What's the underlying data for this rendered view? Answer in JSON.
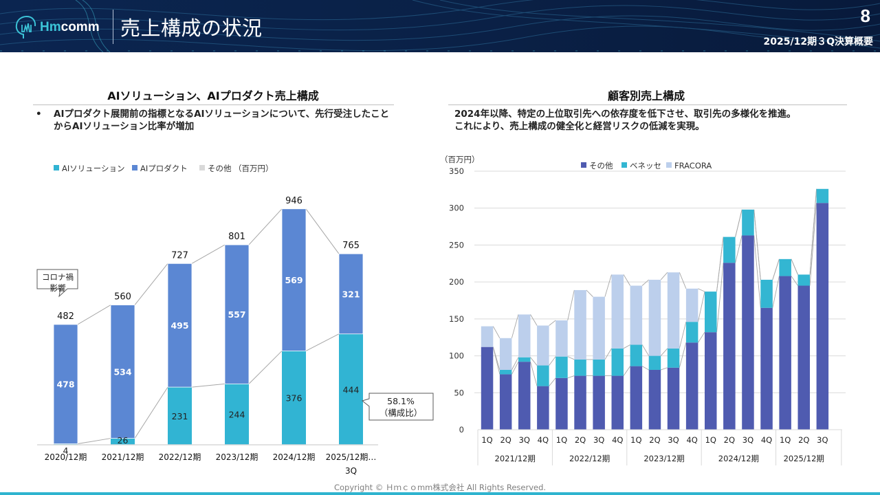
{
  "header": {
    "logo_text_a": "Hm",
    "logo_text_b": "comm",
    "title": "売上構成の状況",
    "page_number": "8",
    "document_title": "2025/12期３Q決算概要"
  },
  "left_section": {
    "title": "AIソリューション、AIプロダクト売上構成",
    "bullet": "AIプロダクト展開前の指標となるAIソリューションについて、先行受注したことからAIソリューション比率が増加",
    "bullet_marker": "•"
  },
  "right_section": {
    "title": "顧客別売上構成",
    "description_line1": "2024年以降、特定の上位取引先への依存度を低下させ、取引先の多様化を推進。",
    "description_line2": "これにより、売上構成の健全化と経営リスクの低減を実現。"
  },
  "footer": {
    "copyright": "Copyright © Ｈｍｃｏmm株式会社 All Rights Reserved."
  },
  "colors": {
    "ai_solution": "#31b4d3",
    "ai_product": "#5b87d3",
    "other_legend": "#d9d9d9",
    "cust_other": "#4f5bb0",
    "cust_benesse": "#33b6d2",
    "cust_fracora": "#bccfec"
  },
  "chart_data": [
    {
      "type": "bar",
      "stacked": true,
      "title": "AIソリューション、AIプロダクト売上構成",
      "unit_label": "（百万円）",
      "categories": [
        "2020/12期",
        "2021/12期",
        "2022/12期",
        "2023/12期",
        "2024/12期",
        "2025/12期…"
      ],
      "category_sublabels": [
        "",
        "",
        "",
        "",
        "",
        "3Q"
      ],
      "series": [
        {
          "name": "AIソリューション",
          "values": [
            4,
            26,
            231,
            244,
            376,
            444
          ]
        },
        {
          "name": "AIプロダクト",
          "values": [
            478,
            534,
            495,
            557,
            569,
            321
          ]
        },
        {
          "name": "その他",
          "values": [
            0,
            0,
            0,
            0,
            0,
            0
          ]
        }
      ],
      "totals": [
        482,
        560,
        727,
        801,
        946,
        765
      ],
      "legend": [
        "AIソリューション",
        "AIプロダクト",
        "その他"
      ],
      "legend_position": "top-left",
      "ylim": [
        0,
        1000
      ],
      "grid": false,
      "annotations": [
        {
          "text_line1": "コロナ禍",
          "text_line2": "影響",
          "target": "2020/12期"
        },
        {
          "text_line1": "58.1%",
          "text_line2": "（構成比）",
          "target": "2025/12期…"
        }
      ]
    },
    {
      "type": "bar",
      "stacked": true,
      "title": "顧客別売上構成",
      "ylabel": "（百万円）",
      "ylim": [
        0,
        350
      ],
      "yticks": [
        0,
        50,
        100,
        150,
        200,
        250,
        300,
        350
      ],
      "grid": true,
      "legend_position": "top",
      "legend": [
        "その他",
        "ベネッセ",
        "FRACORA"
      ],
      "year_groups": [
        {
          "label": "2021/12期",
          "quarters": [
            "1Q",
            "2Q",
            "3Q",
            "4Q"
          ]
        },
        {
          "label": "2022/12期",
          "quarters": [
            "1Q",
            "2Q",
            "3Q",
            "4Q"
          ]
        },
        {
          "label": "2023/12期",
          "quarters": [
            "1Q",
            "2Q",
            "3Q",
            "4Q"
          ]
        },
        {
          "label": "2024/12期",
          "quarters": [
            "1Q",
            "2Q",
            "3Q",
            "4Q"
          ]
        },
        {
          "label": "2025/12期",
          "quarters": [
            "1Q",
            "2Q",
            "3Q"
          ]
        }
      ],
      "series": [
        {
          "name": "その他",
          "values": [
            112,
            75,
            92,
            59,
            70,
            73,
            73,
            73,
            86,
            81,
            84,
            118,
            132,
            226,
            263,
            165,
            208,
            195,
            307
          ]
        },
        {
          "name": "ベネッセ",
          "values": [
            0,
            6,
            6,
            28,
            29,
            22,
            22,
            37,
            29,
            19,
            26,
            28,
            55,
            35,
            35,
            38,
            23,
            15,
            19
          ]
        },
        {
          "name": "FRACORA",
          "values": [
            28,
            43,
            58,
            54,
            49,
            94,
            85,
            100,
            80,
            103,
            103,
            45,
            0,
            0,
            0,
            0,
            0,
            0,
            0
          ]
        }
      ]
    }
  ]
}
